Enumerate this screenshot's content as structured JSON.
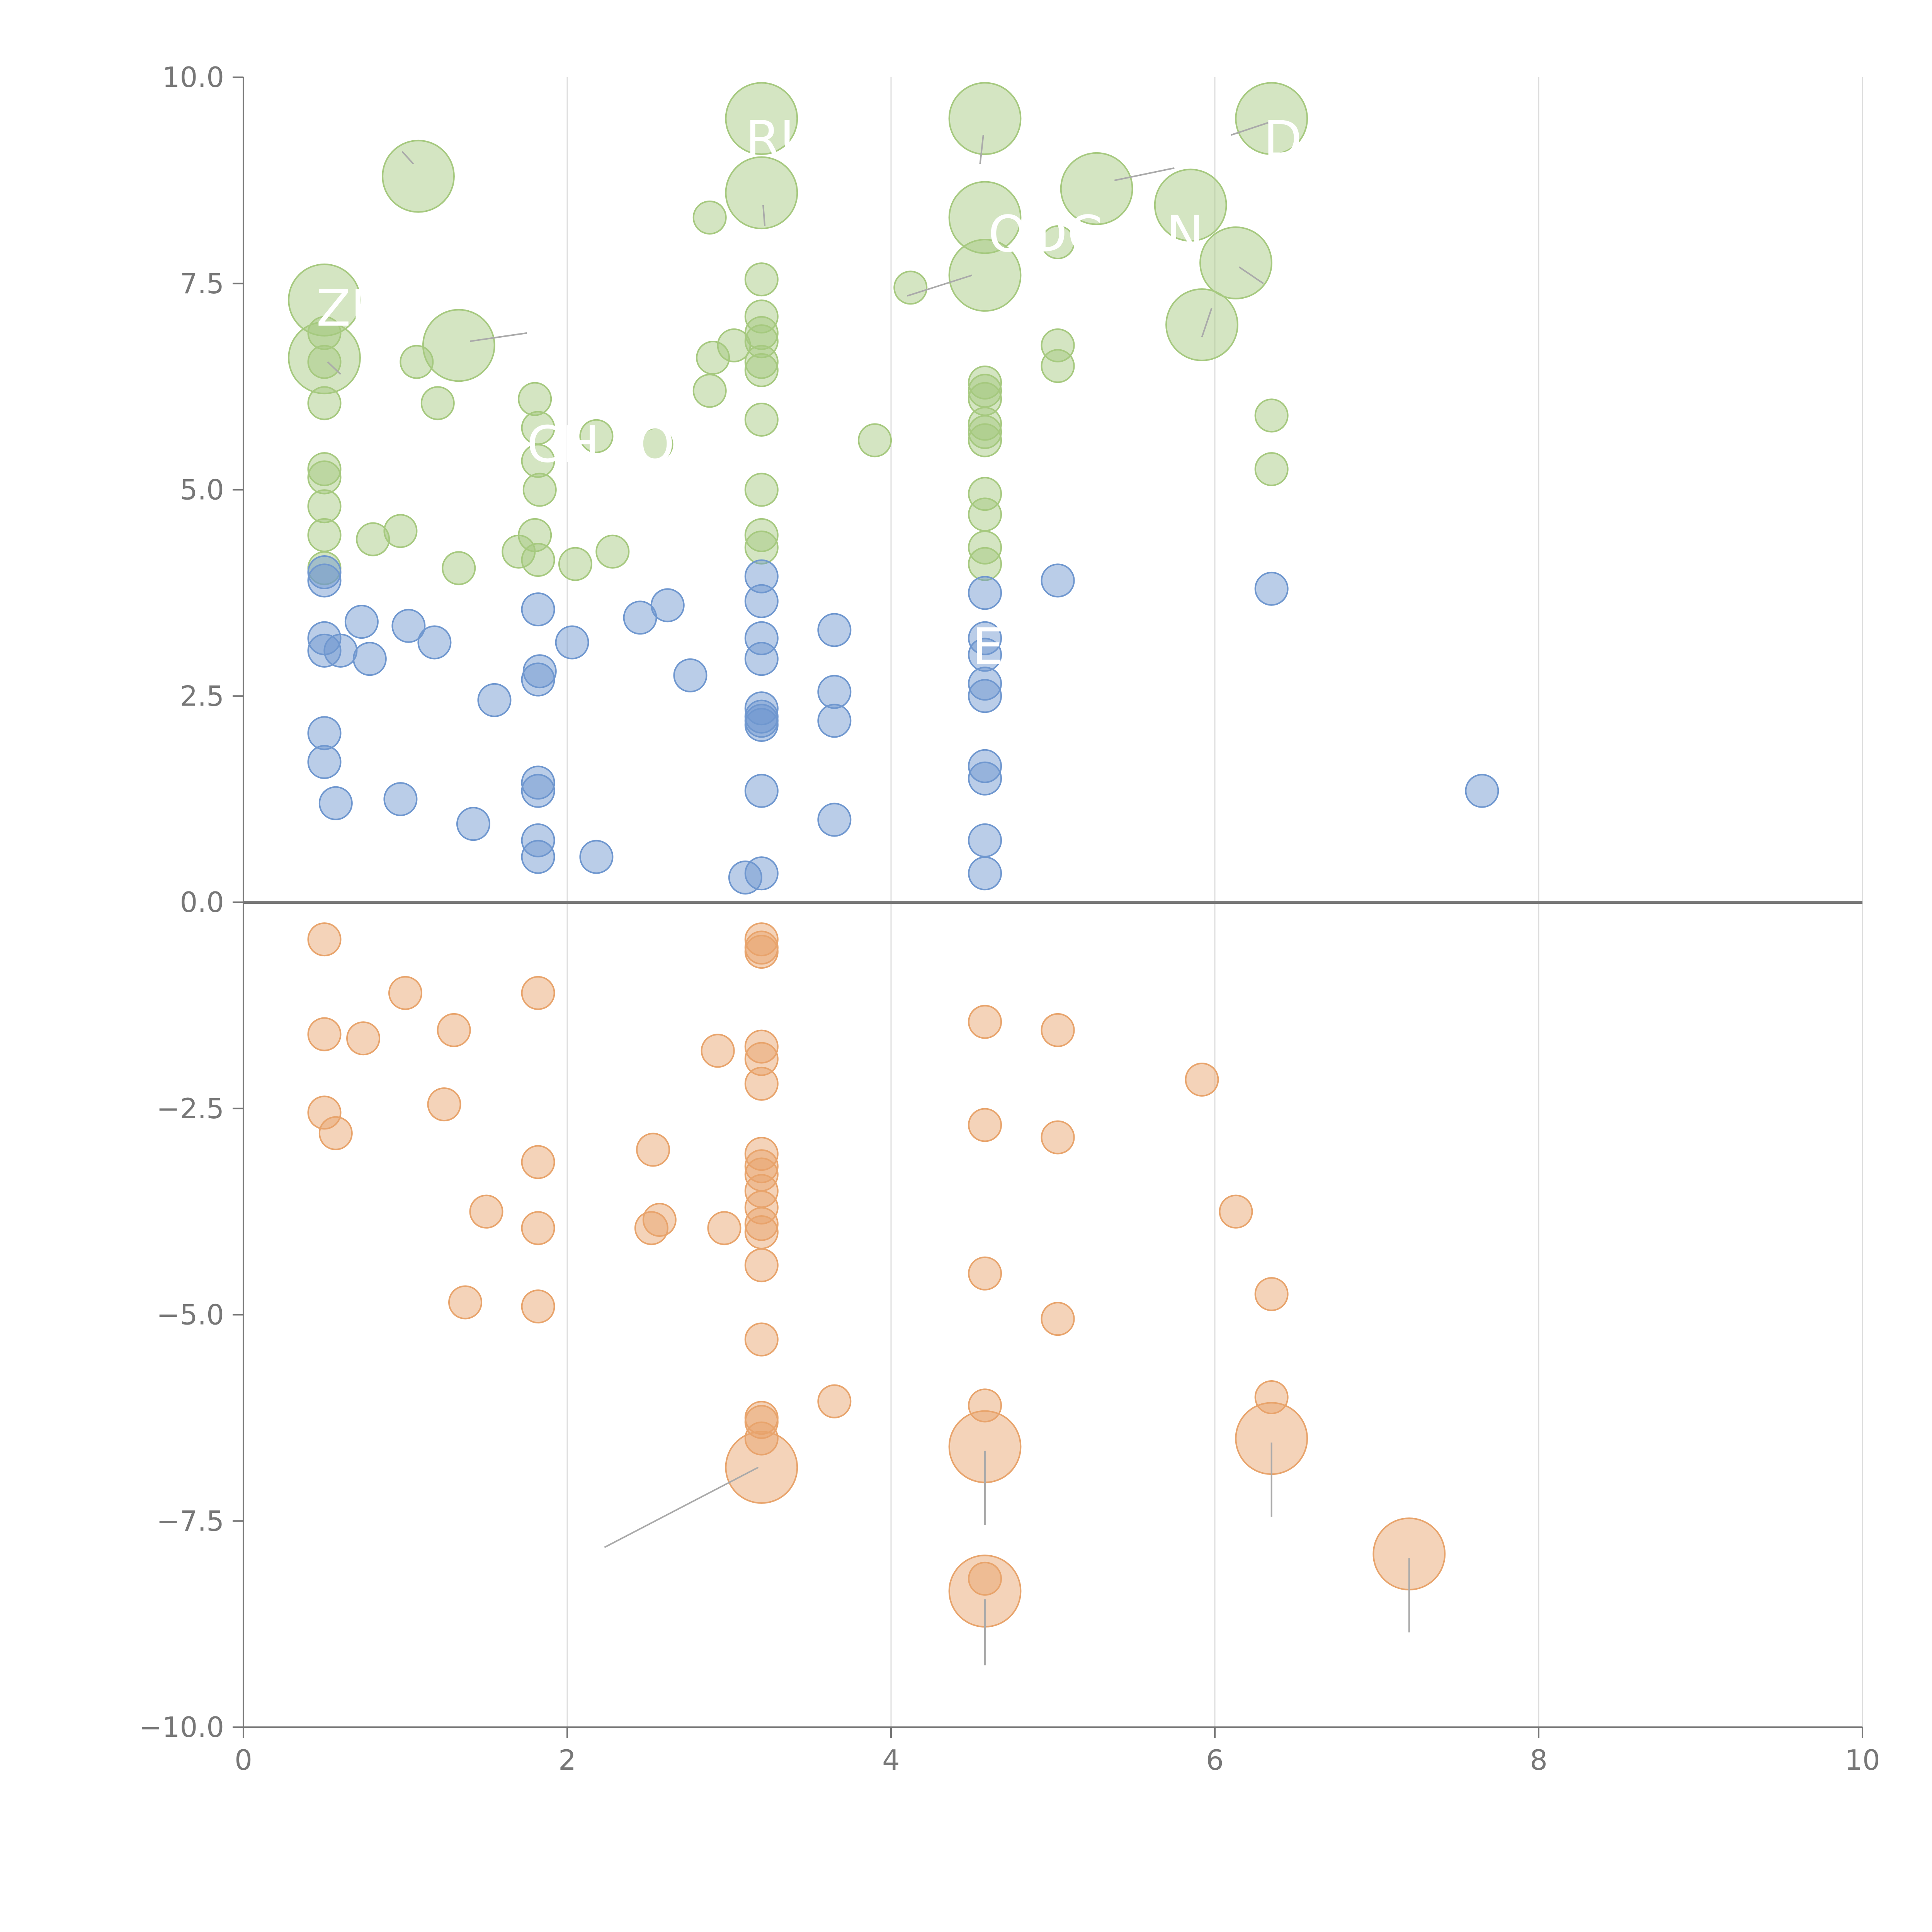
{
  "chart_data": {
    "type": "scatter",
    "title": "",
    "xlabel": "",
    "ylabel": "",
    "xlim": [
      0,
      10
    ],
    "ylim": [
      -10,
      10
    ],
    "x_ticks": [
      0,
      2,
      4,
      6,
      8,
      10
    ],
    "y_ticks": [
      10,
      7.5,
      5,
      2.5,
      0,
      -2.5,
      -5,
      -7.5,
      -10
    ],
    "x_tick_labels": [
      "0",
      "2",
      "4",
      "6",
      "8",
      "10"
    ],
    "y_tick_labels": [
      "10.0",
      "7.5",
      "5.0",
      "2.5",
      "0.0",
      "−2.5",
      "−5.0",
      "−7.5",
      "−10.0"
    ],
    "grid": "vertical",
    "zero_line": true,
    "colors": {
      "green": "#a6c97f",
      "blue": "#6f97cf",
      "orange": "#e8a46c",
      "grid": "#dddddd",
      "axis": "#777777",
      "leader": "#aaaaaa"
    },
    "series": [
      {
        "name": "green",
        "color": "#a6c97f",
        "points": [
          {
            "x": 0.5,
            "y": 7.3,
            "s": 2.2
          },
          {
            "x": 0.5,
            "y": 6.6,
            "s": 2.2
          },
          {
            "x": 0.5,
            "y": 6.9,
            "s": 1
          },
          {
            "x": 0.5,
            "y": 6.55,
            "s": 1
          },
          {
            "x": 0.5,
            "y": 6.05,
            "s": 1
          },
          {
            "x": 0.5,
            "y": 5.25,
            "s": 1
          },
          {
            "x": 0.5,
            "y": 5.15,
            "s": 1
          },
          {
            "x": 0.5,
            "y": 4.8,
            "s": 1
          },
          {
            "x": 0.5,
            "y": 4.45,
            "s": 1
          },
          {
            "x": 0.5,
            "y": 4.05,
            "s": 1
          },
          {
            "x": 0.8,
            "y": 4.4,
            "s": 1
          },
          {
            "x": 0.97,
            "y": 4.5,
            "s": 1
          },
          {
            "x": 1.07,
            "y": 6.55,
            "s": 1
          },
          {
            "x": 1.08,
            "y": 8.8,
            "s": 2.2
          },
          {
            "x": 1.2,
            "y": 6.05,
            "s": 1
          },
          {
            "x": 1.33,
            "y": 6.75,
            "s": 2.2
          },
          {
            "x": 1.33,
            "y": 4.05,
            "s": 1
          },
          {
            "x": 1.7,
            "y": 4.25,
            "s": 1
          },
          {
            "x": 1.8,
            "y": 6.1,
            "s": 1
          },
          {
            "x": 1.82,
            "y": 5.75,
            "s": 1
          },
          {
            "x": 1.82,
            "y": 5.35,
            "s": 1
          },
          {
            "x": 1.83,
            "y": 5.0,
            "s": 1
          },
          {
            "x": 1.8,
            "y": 4.45,
            "s": 1
          },
          {
            "x": 1.82,
            "y": 4.15,
            "s": 1
          },
          {
            "x": 2.05,
            "y": 4.1,
            "s": 1
          },
          {
            "x": 2.18,
            "y": 5.65,
            "s": 1
          },
          {
            "x": 2.28,
            "y": 4.25,
            "s": 1
          },
          {
            "x": 2.55,
            "y": 5.55,
            "s": 1
          },
          {
            "x": 2.88,
            "y": 8.3,
            "s": 1
          },
          {
            "x": 2.9,
            "y": 6.6,
            "s": 1
          },
          {
            "x": 2.88,
            "y": 6.2,
            "s": 1
          },
          {
            "x": 3.03,
            "y": 6.75,
            "s": 1
          },
          {
            "x": 3.2,
            "y": 9.5,
            "s": 2.2
          },
          {
            "x": 3.2,
            "y": 8.6,
            "s": 2.2
          },
          {
            "x": 3.2,
            "y": 7.55,
            "s": 1
          },
          {
            "x": 3.2,
            "y": 7.1,
            "s": 1
          },
          {
            "x": 3.2,
            "y": 6.9,
            "s": 1
          },
          {
            "x": 3.2,
            "y": 6.8,
            "s": 1
          },
          {
            "x": 3.2,
            "y": 6.55,
            "s": 1
          },
          {
            "x": 3.2,
            "y": 6.45,
            "s": 1
          },
          {
            "x": 3.2,
            "y": 5.85,
            "s": 1
          },
          {
            "x": 3.2,
            "y": 5.0,
            "s": 1
          },
          {
            "x": 3.2,
            "y": 4.45,
            "s": 1
          },
          {
            "x": 3.2,
            "y": 4.3,
            "s": 1
          },
          {
            "x": 3.9,
            "y": 5.6,
            "s": 1
          },
          {
            "x": 4.12,
            "y": 7.45,
            "s": 1
          },
          {
            "x": 4.58,
            "y": 9.5,
            "s": 2.2
          },
          {
            "x": 4.58,
            "y": 8.3,
            "s": 2.2
          },
          {
            "x": 4.58,
            "y": 7.6,
            "s": 2.2
          },
          {
            "x": 4.58,
            "y": 6.3,
            "s": 1
          },
          {
            "x": 4.58,
            "y": 6.2,
            "s": 1
          },
          {
            "x": 4.58,
            "y": 6.1,
            "s": 1
          },
          {
            "x": 4.58,
            "y": 5.8,
            "s": 1
          },
          {
            "x": 4.58,
            "y": 5.7,
            "s": 1
          },
          {
            "x": 4.58,
            "y": 5.6,
            "s": 1
          },
          {
            "x": 4.58,
            "y": 4.95,
            "s": 1
          },
          {
            "x": 4.58,
            "y": 4.7,
            "s": 1
          },
          {
            "x": 4.58,
            "y": 4.3,
            "s": 1
          },
          {
            "x": 4.58,
            "y": 4.1,
            "s": 1
          },
          {
            "x": 5.03,
            "y": 8.0,
            "s": 1
          },
          {
            "x": 5.03,
            "y": 6.75,
            "s": 1
          },
          {
            "x": 5.03,
            "y": 6.5,
            "s": 1
          },
          {
            "x": 5.27,
            "y": 8.65,
            "s": 2.2
          },
          {
            "x": 5.85,
            "y": 8.45,
            "s": 2.2
          },
          {
            "x": 5.92,
            "y": 7.0,
            "s": 2.2
          },
          {
            "x": 6.13,
            "y": 7.75,
            "s": 2.2
          },
          {
            "x": 6.35,
            "y": 9.5,
            "s": 2.2
          },
          {
            "x": 6.35,
            "y": 5.9,
            "s": 1
          },
          {
            "x": 6.35,
            "y": 5.25,
            "s": 1
          }
        ]
      },
      {
        "name": "blue",
        "color": "#6f97cf",
        "points": [
          {
            "x": 0.5,
            "y": 4.0,
            "s": 1
          },
          {
            "x": 0.5,
            "y": 3.9,
            "s": 1
          },
          {
            "x": 0.5,
            "y": 3.2,
            "s": 1
          },
          {
            "x": 0.5,
            "y": 3.05,
            "s": 1
          },
          {
            "x": 0.5,
            "y": 2.05,
            "s": 1
          },
          {
            "x": 0.5,
            "y": 1.7,
            "s": 1
          },
          {
            "x": 0.57,
            "y": 1.2,
            "s": 1
          },
          {
            "x": 0.6,
            "y": 3.05,
            "s": 1
          },
          {
            "x": 0.73,
            "y": 3.4,
            "s": 1
          },
          {
            "x": 0.78,
            "y": 2.95,
            "s": 1
          },
          {
            "x": 0.97,
            "y": 1.25,
            "s": 1
          },
          {
            "x": 1.02,
            "y": 3.35,
            "s": 1
          },
          {
            "x": 1.18,
            "y": 3.15,
            "s": 1
          },
          {
            "x": 1.42,
            "y": 0.95,
            "s": 1
          },
          {
            "x": 1.55,
            "y": 2.45,
            "s": 1
          },
          {
            "x": 1.82,
            "y": 3.55,
            "s": 1
          },
          {
            "x": 1.83,
            "y": 2.8,
            "s": 1
          },
          {
            "x": 1.82,
            "y": 2.7,
            "s": 1
          },
          {
            "x": 1.82,
            "y": 1.45,
            "s": 1
          },
          {
            "x": 1.82,
            "y": 1.35,
            "s": 1
          },
          {
            "x": 1.82,
            "y": 0.75,
            "s": 1
          },
          {
            "x": 1.82,
            "y": 0.55,
            "s": 1
          },
          {
            "x": 2.03,
            "y": 3.15,
            "s": 1
          },
          {
            "x": 2.18,
            "y": 0.55,
            "s": 1
          },
          {
            "x": 2.45,
            "y": 3.45,
            "s": 1
          },
          {
            "x": 2.62,
            "y": 3.6,
            "s": 1
          },
          {
            "x": 2.76,
            "y": 2.75,
            "s": 1
          },
          {
            "x": 3.1,
            "y": 0.3,
            "s": 1
          },
          {
            "x": 3.2,
            "y": 0.35,
            "s": 1
          },
          {
            "x": 3.2,
            "y": 3.95,
            "s": 1
          },
          {
            "x": 3.2,
            "y": 3.65,
            "s": 1
          },
          {
            "x": 3.2,
            "y": 3.2,
            "s": 1
          },
          {
            "x": 3.2,
            "y": 2.95,
            "s": 1
          },
          {
            "x": 3.2,
            "y": 2.35,
            "s": 1
          },
          {
            "x": 3.2,
            "y": 2.25,
            "s": 1
          },
          {
            "x": 3.2,
            "y": 2.2,
            "s": 1
          },
          {
            "x": 3.2,
            "y": 2.15,
            "s": 1
          },
          {
            "x": 3.2,
            "y": 1.35,
            "s": 1
          },
          {
            "x": 3.65,
            "y": 3.3,
            "s": 1
          },
          {
            "x": 3.65,
            "y": 2.55,
            "s": 1
          },
          {
            "x": 3.65,
            "y": 2.2,
            "s": 1
          },
          {
            "x": 3.65,
            "y": 1.0,
            "s": 1
          },
          {
            "x": 4.58,
            "y": 3.75,
            "s": 1
          },
          {
            "x": 4.58,
            "y": 3.2,
            "s": 1
          },
          {
            "x": 4.58,
            "y": 3.0,
            "s": 1
          },
          {
            "x": 4.58,
            "y": 2.65,
            "s": 1
          },
          {
            "x": 4.58,
            "y": 2.5,
            "s": 1
          },
          {
            "x": 4.58,
            "y": 1.65,
            "s": 1
          },
          {
            "x": 4.58,
            "y": 1.5,
            "s": 1
          },
          {
            "x": 4.58,
            "y": 0.75,
            "s": 1
          },
          {
            "x": 4.58,
            "y": 0.35,
            "s": 1
          },
          {
            "x": 5.03,
            "y": 3.9,
            "s": 1
          },
          {
            "x": 6.35,
            "y": 3.8,
            "s": 1
          },
          {
            "x": 7.65,
            "y": 1.35,
            "s": 1
          }
        ]
      },
      {
        "name": "orange",
        "color": "#e8a46c",
        "points": [
          {
            "x": 0.5,
            "y": -0.45,
            "s": 1
          },
          {
            "x": 0.5,
            "y": -1.6,
            "s": 1
          },
          {
            "x": 0.5,
            "y": -2.55,
            "s": 1
          },
          {
            "x": 0.57,
            "y": -2.8,
            "s": 1
          },
          {
            "x": 0.74,
            "y": -1.65,
            "s": 1
          },
          {
            "x": 1.0,
            "y": -1.1,
            "s": 1
          },
          {
            "x": 1.24,
            "y": -2.45,
            "s": 1
          },
          {
            "x": 1.3,
            "y": -1.55,
            "s": 1
          },
          {
            "x": 1.37,
            "y": -4.85,
            "s": 1
          },
          {
            "x": 1.5,
            "y": -3.75,
            "s": 1
          },
          {
            "x": 1.82,
            "y": -1.1,
            "s": 1
          },
          {
            "x": 1.82,
            "y": -3.15,
            "s": 1
          },
          {
            "x": 1.82,
            "y": -3.95,
            "s": 1
          },
          {
            "x": 1.82,
            "y": -4.9,
            "s": 1
          },
          {
            "x": 2.53,
            "y": -3.0,
            "s": 1
          },
          {
            "x": 2.52,
            "y": -3.95,
            "s": 1
          },
          {
            "x": 2.57,
            "y": -3.85,
            "s": 1
          },
          {
            "x": 2.93,
            "y": -1.8,
            "s": 1
          },
          {
            "x": 2.97,
            "y": -3.95,
            "s": 1
          },
          {
            "x": 3.2,
            "y": -0.45,
            "s": 1
          },
          {
            "x": 3.2,
            "y": -0.55,
            "s": 1
          },
          {
            "x": 3.2,
            "y": -0.6,
            "s": 1
          },
          {
            "x": 3.2,
            "y": -1.75,
            "s": 1
          },
          {
            "x": 3.2,
            "y": -1.9,
            "s": 1
          },
          {
            "x": 3.2,
            "y": -2.2,
            "s": 1
          },
          {
            "x": 3.2,
            "y": -3.05,
            "s": 1
          },
          {
            "x": 3.2,
            "y": -3.2,
            "s": 1
          },
          {
            "x": 3.2,
            "y": -3.3,
            "s": 1
          },
          {
            "x": 3.2,
            "y": -3.5,
            "s": 1
          },
          {
            "x": 3.2,
            "y": -3.7,
            "s": 1
          },
          {
            "x": 3.2,
            "y": -3.9,
            "s": 1
          },
          {
            "x": 3.2,
            "y": -4.0,
            "s": 1
          },
          {
            "x": 3.2,
            "y": -4.4,
            "s": 1
          },
          {
            "x": 3.2,
            "y": -5.3,
            "s": 1
          },
          {
            "x": 3.2,
            "y": -6.25,
            "s": 1
          },
          {
            "x": 3.2,
            "y": -6.3,
            "s": 1
          },
          {
            "x": 3.2,
            "y": -6.5,
            "s": 1
          },
          {
            "x": 3.2,
            "y": -6.85,
            "s": 2.2
          },
          {
            "x": 3.65,
            "y": -6.05,
            "s": 1
          },
          {
            "x": 4.58,
            "y": -1.45,
            "s": 1
          },
          {
            "x": 4.58,
            "y": -2.7,
            "s": 1
          },
          {
            "x": 4.58,
            "y": -4.5,
            "s": 1
          },
          {
            "x": 4.58,
            "y": -6.1,
            "s": 1
          },
          {
            "x": 4.58,
            "y": -6.6,
            "s": 2.2
          },
          {
            "x": 4.58,
            "y": -8.35,
            "s": 2.2
          },
          {
            "x": 4.58,
            "y": -8.2,
            "s": 1
          },
          {
            "x": 5.03,
            "y": -1.55,
            "s": 1
          },
          {
            "x": 5.03,
            "y": -2.85,
            "s": 1
          },
          {
            "x": 5.03,
            "y": -5.05,
            "s": 1
          },
          {
            "x": 5.92,
            "y": -2.15,
            "s": 1
          },
          {
            "x": 6.13,
            "y": -3.75,
            "s": 1
          },
          {
            "x": 6.35,
            "y": -4.75,
            "s": 1
          },
          {
            "x": 6.35,
            "y": -6.0,
            "s": 1
          },
          {
            "x": 6.35,
            "y": -6.5,
            "s": 2.2
          },
          {
            "x": 7.2,
            "y": -7.9,
            "s": 2.2
          }
        ]
      }
    ],
    "annotations": [
      {
        "text": "ZF",
        "x": 0.45,
        "y": 7.2
      },
      {
        "text": "RU",
        "x": 3.1,
        "y": 9.25
      },
      {
        "text": "DO",
        "x": 6.3,
        "y": 9.25
      },
      {
        "text": "OT",
        "x": 4.6,
        "y": 8.1
      },
      {
        "text": "DC",
        "x": 4.85,
        "y": 8.1
      },
      {
        "text": "N",
        "x": 5.7,
        "y": 8.1
      },
      {
        "text": "CH",
        "x": 1.75,
        "y": 5.55
      },
      {
        "text": "O",
        "x": 2.42,
        "y": 5.55
      },
      {
        "text": "E",
        "x": 4.5,
        "y": 3.1
      }
    ],
    "leader_lines": [
      {
        "x1": 1.05,
        "y1": 8.95,
        "x2": 0.98,
        "y2": 9.1
      },
      {
        "x1": 0.52,
        "y1": 6.55,
        "x2": 0.6,
        "y2": 6.4
      },
      {
        "x1": 1.4,
        "y1": 6.8,
        "x2": 1.75,
        "y2": 6.9
      },
      {
        "x1": 3.21,
        "y1": 8.45,
        "x2": 3.22,
        "y2": 8.2
      },
      {
        "x1": 4.57,
        "y1": 9.3,
        "x2": 4.55,
        "y2": 8.95
      },
      {
        "x1": 4.5,
        "y1": 7.6,
        "x2": 4.1,
        "y2": 7.35
      },
      {
        "x1": 5.38,
        "y1": 8.75,
        "x2": 5.75,
        "y2": 8.9
      },
      {
        "x1": 6.15,
        "y1": 7.7,
        "x2": 6.3,
        "y2": 7.5
      },
      {
        "x1": 5.92,
        "y1": 6.85,
        "x2": 5.98,
        "y2": 7.2
      },
      {
        "x1": 6.33,
        "y1": 9.45,
        "x2": 6.1,
        "y2": 9.3
      },
      {
        "x1": 3.18,
        "y1": -6.85,
        "x2": 2.23,
        "y2": -7.82
      },
      {
        "x1": 4.58,
        "y1": -6.65,
        "x2": 4.58,
        "y2": -7.55
      },
      {
        "x1": 4.58,
        "y1": -8.45,
        "x2": 4.58,
        "y2": -9.25
      },
      {
        "x1": 6.35,
        "y1": -6.55,
        "x2": 6.35,
        "y2": -7.45
      },
      {
        "x1": 7.2,
        "y1": -7.95,
        "x2": 7.2,
        "y2": -8.85
      }
    ]
  }
}
